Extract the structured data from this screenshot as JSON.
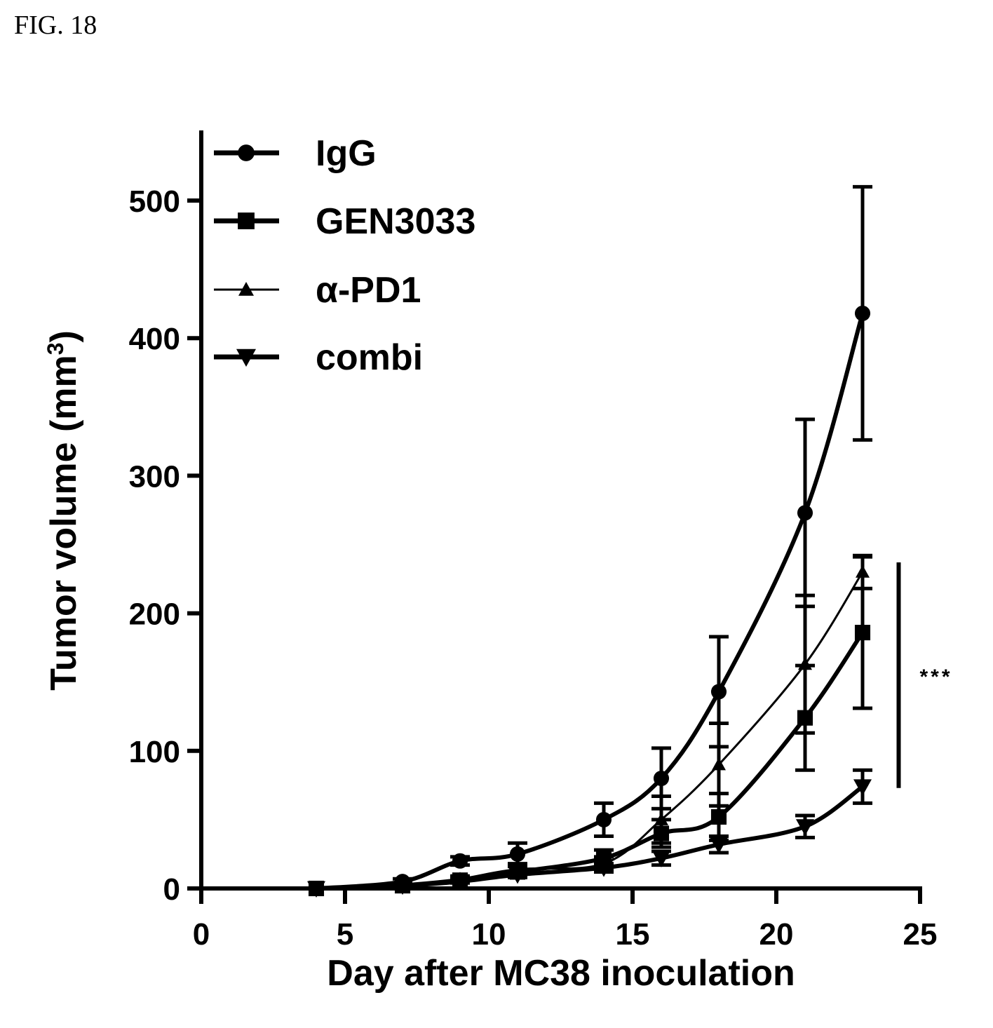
{
  "figure_label": "FIG. 18",
  "chart_data": {
    "type": "line",
    "title": "",
    "xlabel": "Day after MC38 inoculation",
    "ylabel": "Tumor volume (mm",
    "ylabel_superscript": "3",
    "ylabel_suffix": ")",
    "xlim": [
      0,
      25
    ],
    "ylim": [
      0,
      500
    ],
    "x_ticks": [
      0,
      5,
      10,
      15,
      20,
      25
    ],
    "y_ticks": [
      0,
      100,
      200,
      300,
      400,
      500
    ],
    "grid": false,
    "legend_position": "top-left",
    "series": [
      {
        "name": "IgG",
        "marker": "circle",
        "line": "thick",
        "x": [
          4,
          7,
          9,
          11,
          14,
          16,
          18,
          21,
          23
        ],
        "y": [
          0,
          5,
          20,
          25,
          50,
          80,
          143,
          273,
          418
        ],
        "err": [
          0,
          2,
          3,
          8,
          12,
          22,
          40,
          68,
          92
        ]
      },
      {
        "name": "GEN3033",
        "marker": "square",
        "line": "thick",
        "x": [
          4,
          7,
          9,
          11,
          14,
          16,
          18,
          21,
          23
        ],
        "y": [
          0,
          2,
          6,
          12,
          22,
          40,
          52,
          124,
          186
        ],
        "err": [
          0,
          1,
          2,
          4,
          6,
          10,
          17,
          38,
          55
        ]
      },
      {
        "name": "α-PD1",
        "marker": "triangle-up",
        "line": "thin",
        "x": [
          4,
          7,
          9,
          11,
          14,
          16,
          18,
          21,
          23
        ],
        "y": [
          0,
          3,
          7,
          14,
          18,
          50,
          90,
          163,
          230
        ],
        "err": [
          0,
          1,
          2,
          4,
          5,
          17,
          30,
          50,
          12
        ]
      },
      {
        "name": "combi",
        "marker": "triangle-down",
        "line": "thick",
        "x": [
          4,
          7,
          9,
          11,
          14,
          16,
          18,
          21,
          23
        ],
        "y": [
          0,
          2,
          5,
          10,
          15,
          22,
          32,
          45,
          74
        ],
        "err": [
          0,
          1,
          1,
          2,
          3,
          5,
          6,
          8,
          12
        ]
      }
    ],
    "annotation": {
      "text": "***",
      "from_y": 73,
      "to_y": 237,
      "x": 24.5
    }
  }
}
